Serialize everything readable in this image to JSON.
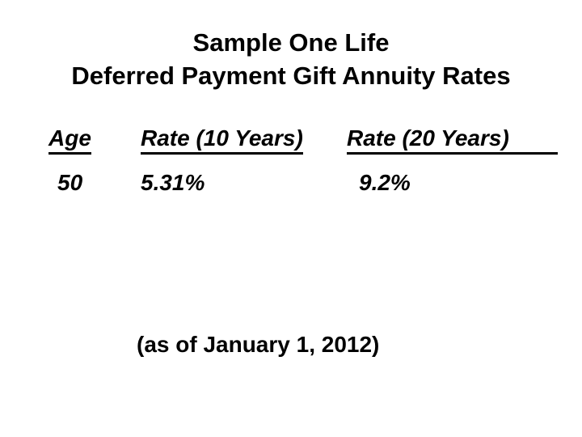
{
  "slide": {
    "title": {
      "line1": "Sample One Life",
      "line2": "Deferred Payment Gift Annuity Rates"
    },
    "rate_table": {
      "columns": [
        {
          "label": "Age"
        },
        {
          "label": "Rate (10 Years)"
        },
        {
          "label": "Rate (20 Years)"
        }
      ],
      "rows": [
        {
          "age": "50",
          "rate_10_years": "5.31%",
          "rate_20_years": "9.2%"
        }
      ]
    },
    "footnote": "(as of January 1, 2012)"
  },
  "colors": {
    "text": "#000000",
    "background": "#ffffff"
  }
}
